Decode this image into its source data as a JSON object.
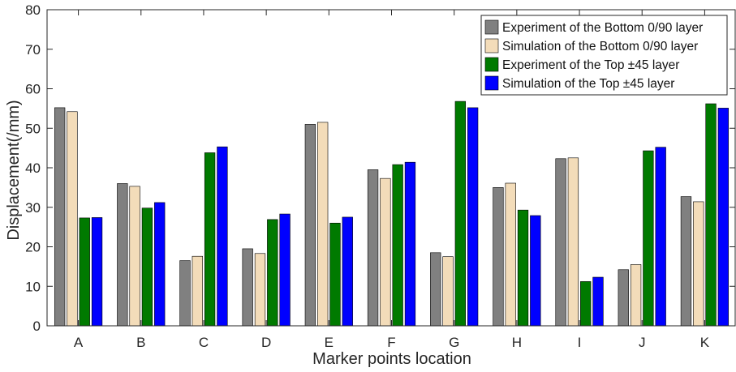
{
  "chart_data": {
    "type": "bar",
    "title": "",
    "xlabel": "Marker points location",
    "ylabel": "Displacement(/mm)",
    "ylim": [
      0,
      80
    ],
    "yticks": [
      0,
      10,
      20,
      30,
      40,
      50,
      60,
      70,
      80
    ],
    "grid": false,
    "legend_position": "top-right",
    "categories": [
      "A",
      "B",
      "C",
      "D",
      "E",
      "F",
      "G",
      "H",
      "I",
      "J",
      "K"
    ],
    "series": [
      {
        "name": "Experiment of the Bottom 0/90 layer",
        "color": "#808080",
        "values": [
          55.2,
          36.0,
          16.5,
          19.5,
          51.0,
          39.5,
          18.5,
          35.0,
          42.3,
          14.2,
          32.7
        ]
      },
      {
        "name": "Simulation of the Bottom 0/90 layer",
        "color": "#f3dcb9",
        "values": [
          54.2,
          35.3,
          17.6,
          18.3,
          51.5,
          37.3,
          17.5,
          36.1,
          42.5,
          15.5,
          31.4
        ]
      },
      {
        "name": "Experiment of the Top ±45 layer",
        "color": "#007a00",
        "values": [
          27.3,
          29.8,
          43.8,
          26.9,
          26.0,
          40.8,
          56.8,
          29.3,
          11.2,
          44.3,
          56.2
        ]
      },
      {
        "name": "Simulation of the Top ±45 layer",
        "color": "#0000ff",
        "values": [
          27.4,
          31.2,
          45.3,
          28.3,
          27.5,
          41.4,
          55.2,
          27.9,
          12.3,
          45.2,
          55.1
        ]
      }
    ]
  }
}
